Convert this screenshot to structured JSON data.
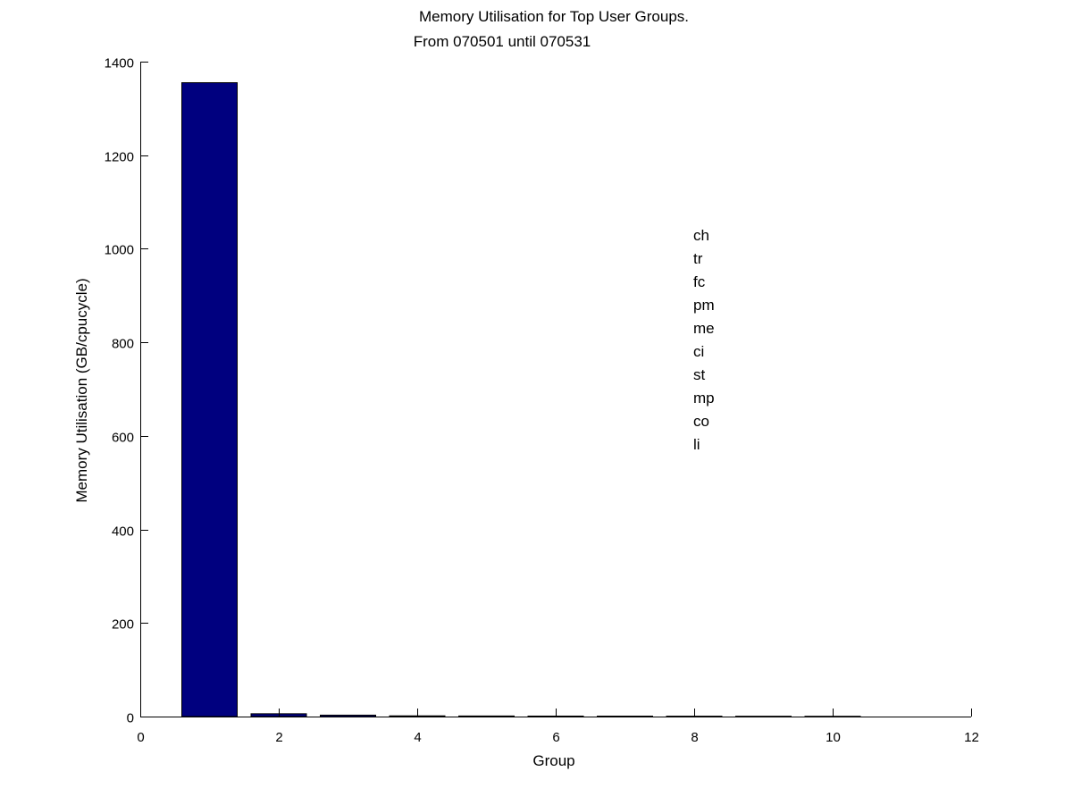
{
  "chart_data": {
    "type": "bar",
    "title": "Memory Utilisation for Top User Groups.",
    "subtitle": "From 070501 until 070531",
    "xlabel": "Group",
    "ylabel": "Memory Utilisation (GB/cpucycle)",
    "x": [
      1,
      2,
      3,
      4,
      5,
      6,
      7,
      8,
      9,
      10
    ],
    "values": [
      1355,
      6,
      3,
      1.5,
      1.2,
      1,
      0.9,
      0.8,
      0.7,
      0.6
    ],
    "xlim": [
      0,
      12
    ],
    "ylim": [
      0,
      1400
    ],
    "xticks": [
      "0",
      "2",
      "4",
      "6",
      "8",
      "10",
      "12"
    ],
    "yticks": [
      "0",
      "200",
      "400",
      "600",
      "800",
      "1000",
      "1200",
      "1400"
    ],
    "grid": false,
    "bar_color": "#00007f",
    "group_labels": [
      "ch",
      "tr",
      "fc",
      "pm",
      "me",
      "ci",
      "st",
      "mp",
      "co",
      "li"
    ],
    "group_labels_placement": "right-center"
  }
}
